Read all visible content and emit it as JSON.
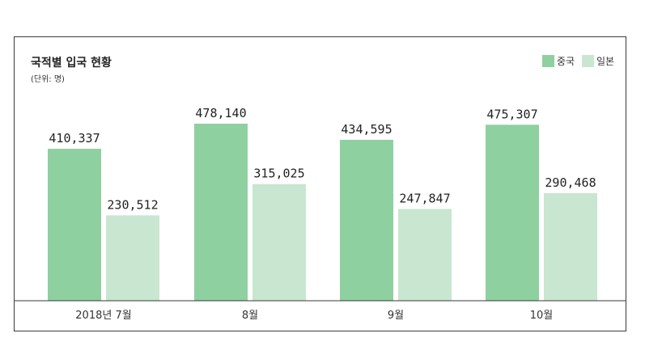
{
  "chart_data": {
    "type": "bar",
    "title": "국적별 입국 현황",
    "subtitle": "(단위: 명)",
    "categories": [
      "2018년 7월",
      "8월",
      "9월",
      "10월"
    ],
    "series": [
      {
        "name": "중국",
        "values": [
          410337,
          478140,
          434595,
          475307
        ],
        "labels": [
          "410,337",
          "478,140",
          "434,595",
          "475,307"
        ],
        "color": "#8fd0a0"
      },
      {
        "name": "일본",
        "values": [
          230512,
          315025,
          247847,
          290468
        ],
        "labels": [
          "230,512",
          "315,025",
          "247,847",
          "290,468"
        ],
        "color": "#c8e6d0"
      }
    ],
    "ylim": [
      0,
      520000
    ],
    "grid": false,
    "legend_position": "top-right"
  }
}
